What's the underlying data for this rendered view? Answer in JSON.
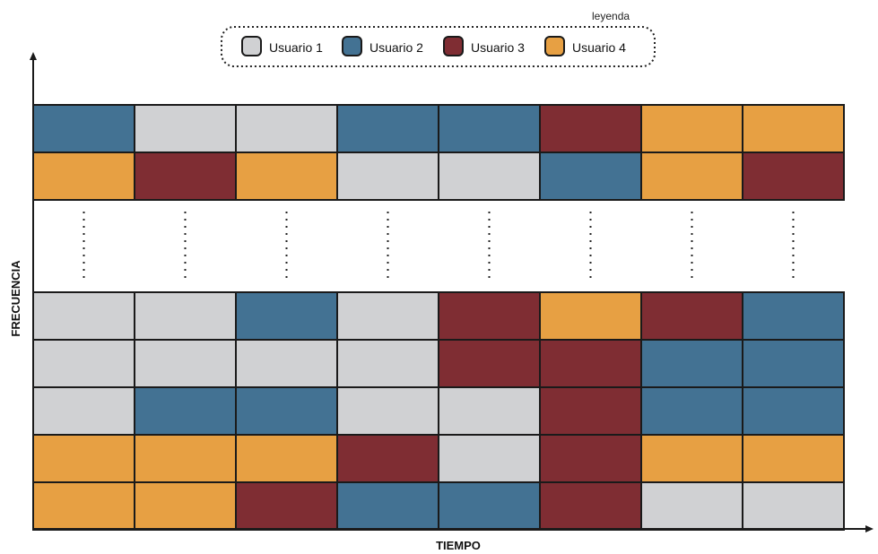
{
  "legend": {
    "title": "leyenda",
    "items": [
      {
        "label": "Usuario 1",
        "color": "#d0d1d3"
      },
      {
        "label": "Usuario 2",
        "color": "#437293"
      },
      {
        "label": "Usuario 3",
        "color": "#7f2d33"
      },
      {
        "label": "Usuario 4",
        "color": "#e7a043"
      }
    ]
  },
  "axes": {
    "x_label": "TIEMPO",
    "y_label": "FRECUENCIA"
  },
  "grid": {
    "columns": 8,
    "top_rows": [
      [
        2,
        1,
        1,
        2,
        2,
        3,
        4,
        4
      ],
      [
        4,
        3,
        4,
        1,
        1,
        2,
        4,
        3
      ]
    ],
    "bottom_rows": [
      [
        1,
        1,
        2,
        1,
        3,
        4,
        3,
        2
      ],
      [
        1,
        1,
        1,
        1,
        3,
        3,
        2,
        2
      ],
      [
        1,
        2,
        2,
        1,
        1,
        3,
        2,
        2
      ],
      [
        4,
        4,
        4,
        3,
        1,
        3,
        4,
        4
      ],
      [
        4,
        4,
        3,
        2,
        2,
        3,
        1,
        1
      ]
    ]
  }
}
